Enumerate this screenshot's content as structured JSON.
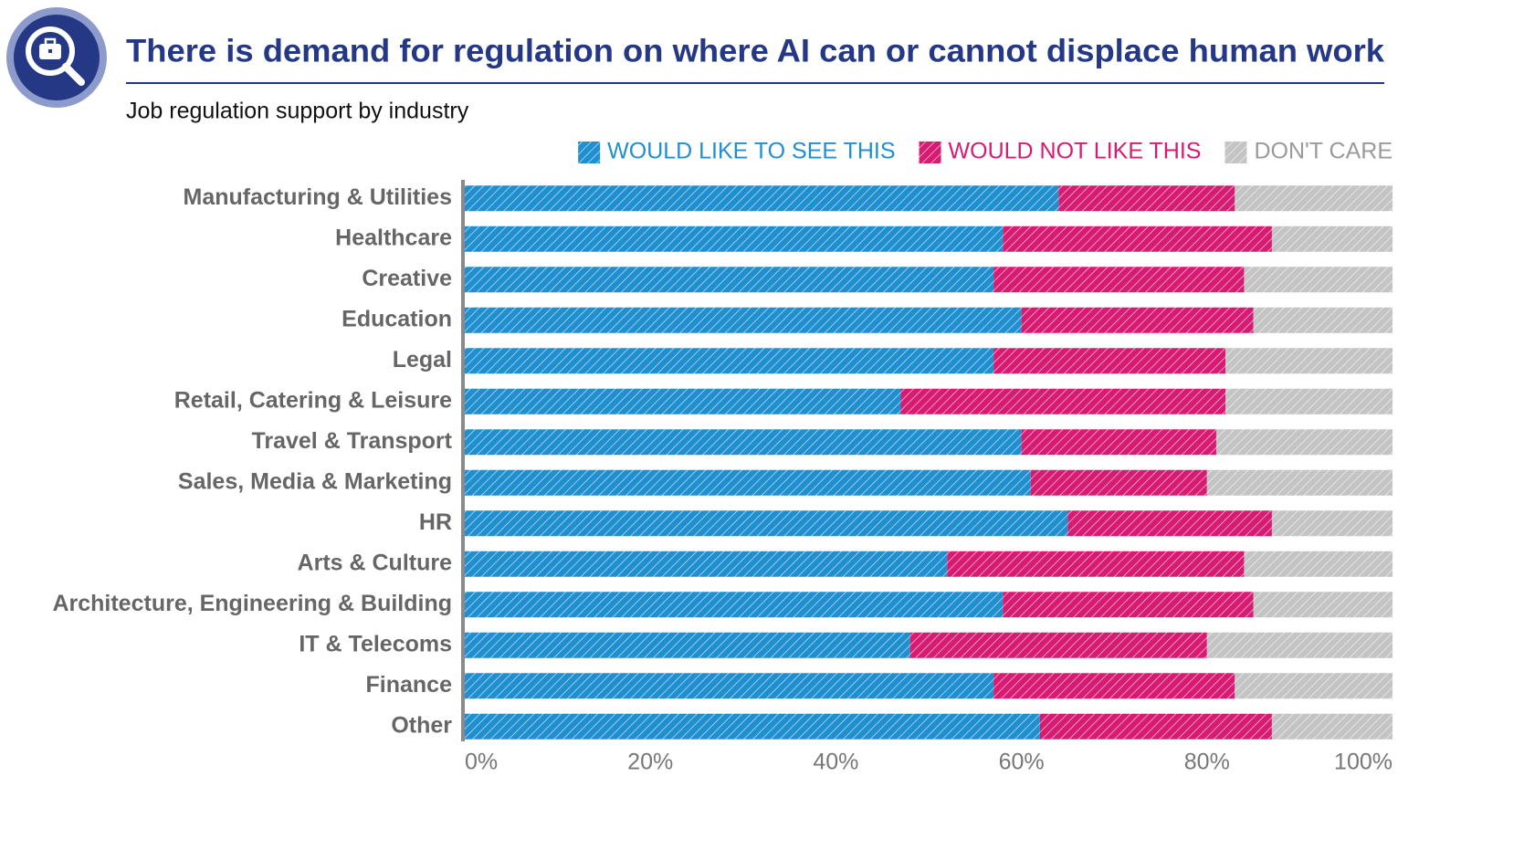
{
  "chart_data": {
    "type": "stacked-barh",
    "title": "There is demand for regulation on where AI can or cannot displace human work",
    "subtitle": "Job regulation support by industry",
    "categories": [
      "Manufacturing & Utilities",
      "Healthcare",
      "Creative",
      "Education",
      "Legal",
      "Retail, Catering & Leisure",
      "Travel & Transport",
      "Sales, Media & Marketing",
      "HR",
      "Arts & Culture",
      "Architecture, Engineering & Building",
      "IT & Telecoms",
      "Finance",
      "Other"
    ],
    "series": [
      {
        "name": "WOULD LIKE TO SEE THIS",
        "color": "#1f8fd0",
        "values": [
          64,
          58,
          57,
          60,
          57,
          47,
          60,
          61,
          65,
          52,
          58,
          48,
          57,
          62
        ]
      },
      {
        "name": "WOULD NOT LIKE THIS",
        "color": "#d81b72",
        "values": [
          19,
          29,
          27,
          25,
          25,
          35,
          21,
          19,
          22,
          32,
          27,
          32,
          26,
          25
        ]
      },
      {
        "name": "DON'T CARE",
        "color": "#c4c4c4",
        "values": [
          17,
          13,
          16,
          15,
          18,
          18,
          19,
          20,
          13,
          16,
          15,
          20,
          17,
          13
        ]
      }
    ],
    "xlim": [
      0,
      100
    ],
    "xticks": [
      {
        "value": 0,
        "label": "0%"
      },
      {
        "value": 20,
        "label": "20%"
      },
      {
        "value": 40,
        "label": "40%"
      },
      {
        "value": 60,
        "label": "60%"
      },
      {
        "value": 80,
        "label": "80%"
      },
      {
        "value": 100,
        "label": "100%"
      }
    ],
    "legend": "top-right",
    "hatched": true
  }
}
